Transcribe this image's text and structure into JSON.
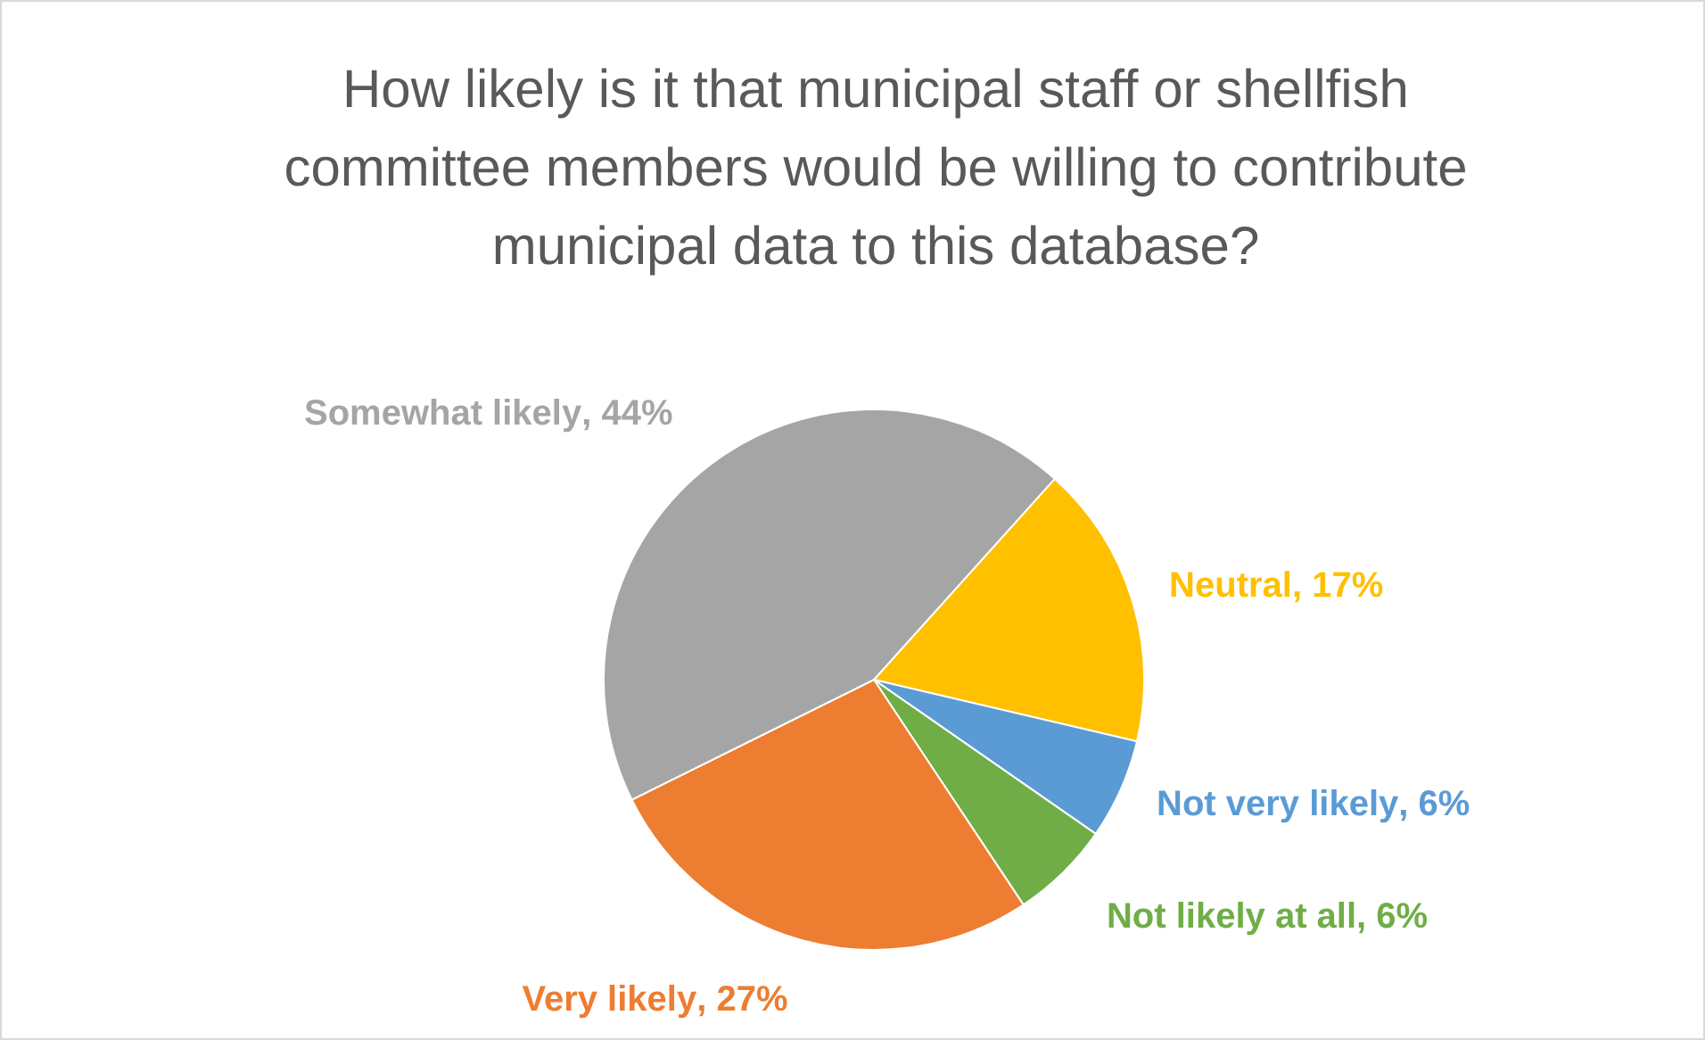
{
  "chart_data": {
    "type": "pie",
    "title": "How likely is it that municipal staff or shellfish committee members would be willing to contribute municipal data to this database?",
    "categories": [
      "Neutral",
      "Not very likely",
      "Not likely at all",
      "Very likely",
      "Somewhat likely"
    ],
    "values": [
      17,
      6,
      6,
      27,
      44
    ],
    "colors": [
      "#ffc000",
      "#5b9bd5",
      "#70ad47",
      "#ed7d31",
      "#a5a5a5"
    ],
    "value_labels": [
      ", 17%",
      ", 6%",
      ", 6%",
      ", 27%",
      ", 44%"
    ],
    "legend": false
  }
}
